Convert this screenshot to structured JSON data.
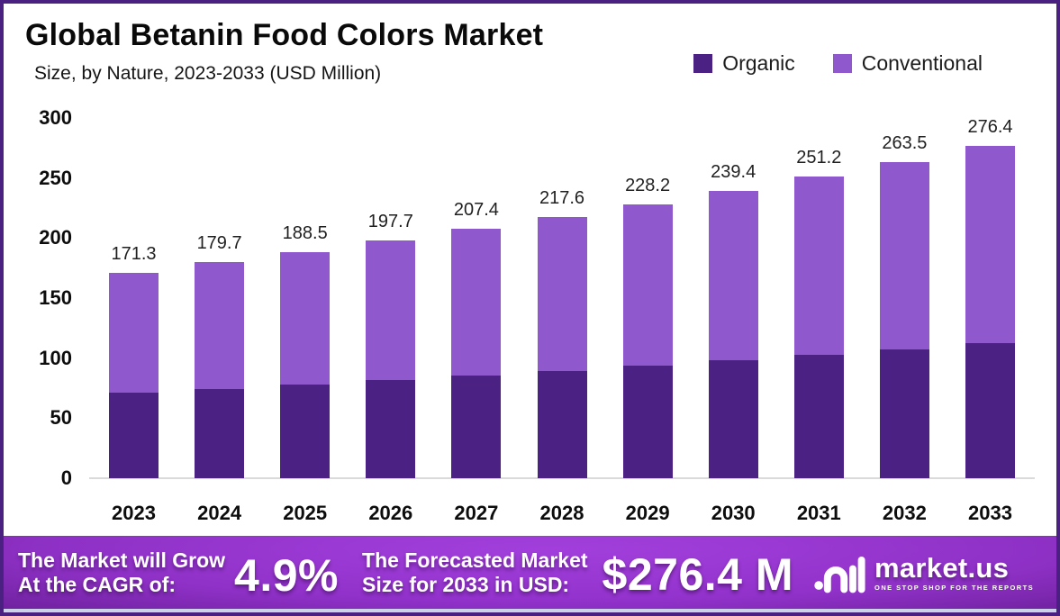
{
  "header": {
    "title": "Global Betanin Food Colors Market",
    "subtitle": "Size, by Nature, 2023-2033 (USD Million)"
  },
  "legend": {
    "items": [
      {
        "label": "Organic",
        "color": "#4B2183"
      },
      {
        "label": "Conventional",
        "color": "#8F58CD"
      }
    ]
  },
  "chart_data": {
    "type": "bar",
    "stacked": true,
    "title": "Global Betanin Food Colors Market",
    "subtitle": "Size, by Nature, 2023-2033 (USD Million)",
    "units": "USD Million",
    "categories": [
      "2023",
      "2024",
      "2025",
      "2026",
      "2027",
      "2028",
      "2029",
      "2030",
      "2031",
      "2032",
      "2033"
    ],
    "series": [
      {
        "name": "Organic",
        "color": "#4B2183",
        "values": [
          71.3,
          74.6,
          78.1,
          81.7,
          85.5,
          89.5,
          93.7,
          98.1,
          102.7,
          107.5,
          112.5
        ]
      },
      {
        "name": "Conventional",
        "color": "#8F58CD",
        "values": [
          100.0,
          105.1,
          110.4,
          116.0,
          121.9,
          128.1,
          134.5,
          141.3,
          148.5,
          156.0,
          163.9
        ]
      }
    ],
    "totals": [
      171.3,
      179.7,
      188.5,
      197.7,
      207.4,
      217.6,
      228.2,
      239.4,
      251.2,
      263.5,
      276.4
    ],
    "total_labels": [
      "171.3",
      "179.7",
      "188.5",
      "197.7",
      "207.4",
      "217.6",
      "228.2",
      "239.4",
      "251.2",
      "263.5",
      "276.4"
    ],
    "yticks": [
      0,
      50,
      100,
      150,
      200,
      250,
      300
    ],
    "ylim": [
      0,
      300
    ],
    "xlabel": "",
    "ylabel": "",
    "grid": false,
    "legend_position": "top-right"
  },
  "footer": {
    "cagr_line1": "The Market will Grow",
    "cagr_line2": "At the CAGR of:",
    "cagr_value": "4.9%",
    "forecast_line1": "The Forecasted Market",
    "forecast_line2": "Size for 2033 in USD:",
    "forecast_value": "$276.4 M",
    "brand": "market.us",
    "tagline": "ONE STOP SHOP FOR THE REPORTS"
  }
}
